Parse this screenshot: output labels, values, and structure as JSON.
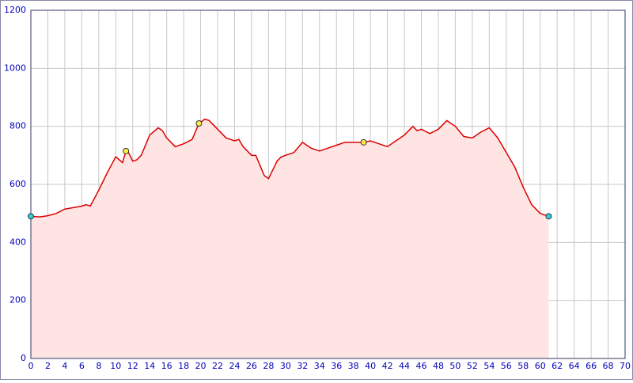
{
  "chart_data": {
    "type": "area",
    "x": [
      0,
      1,
      2,
      3,
      4,
      5,
      6,
      6.5,
      7,
      8,
      9,
      10,
      10.8,
      11.2,
      11.5,
      12,
      12.5,
      13,
      14,
      15,
      15.5,
      16,
      17,
      18,
      19,
      19.8,
      20.5,
      21,
      22,
      23,
      24,
      24.5,
      25,
      26,
      26.5,
      27,
      27.5,
      28,
      29,
      29.5,
      30,
      31,
      32,
      33,
      34,
      35,
      36,
      37,
      38,
      39.2,
      40,
      41,
      42,
      43,
      44,
      45,
      45.5,
      46,
      47,
      48,
      49,
      50,
      51,
      52,
      53,
      54,
      55,
      56,
      57,
      58,
      59,
      60,
      61
    ],
    "values": [
      490,
      488,
      492,
      500,
      515,
      520,
      525,
      530,
      525,
      580,
      640,
      695,
      675,
      715,
      710,
      680,
      685,
      700,
      770,
      795,
      785,
      760,
      730,
      740,
      755,
      810,
      825,
      820,
      790,
      760,
      750,
      755,
      730,
      700,
      700,
      665,
      630,
      620,
      680,
      695,
      700,
      710,
      745,
      725,
      715,
      725,
      735,
      745,
      745,
      745,
      750,
      740,
      730,
      750,
      770,
      800,
      785,
      790,
      775,
      790,
      820,
      800,
      765,
      760,
      780,
      795,
      760,
      710,
      660,
      590,
      530,
      500,
      490
    ],
    "color": "#dd0000",
    "fill": "#ffe4e4",
    "markers": {
      "x": [
        0,
        11.2,
        19.8,
        39.2,
        61
      ],
      "values": [
        490,
        715,
        810,
        745,
        490
      ],
      "colors": [
        "#33ccdd",
        "#ffee44",
        "#ffee44",
        "#ffee44",
        "#33ccdd"
      ]
    },
    "xlim": [
      0,
      70
    ],
    "xticks": [
      0,
      2,
      4,
      6,
      8,
      10,
      12,
      14,
      16,
      18,
      20,
      22,
      24,
      26,
      28,
      30,
      32,
      34,
      36,
      38,
      40,
      42,
      44,
      46,
      48,
      50,
      52,
      54,
      56,
      58,
      60,
      62,
      64,
      66,
      68,
      70
    ],
    "ylim": [
      0,
      1200
    ],
    "yticks": [
      0,
      200,
      400,
      600,
      800,
      1000,
      1200
    ],
    "grid": true
  }
}
